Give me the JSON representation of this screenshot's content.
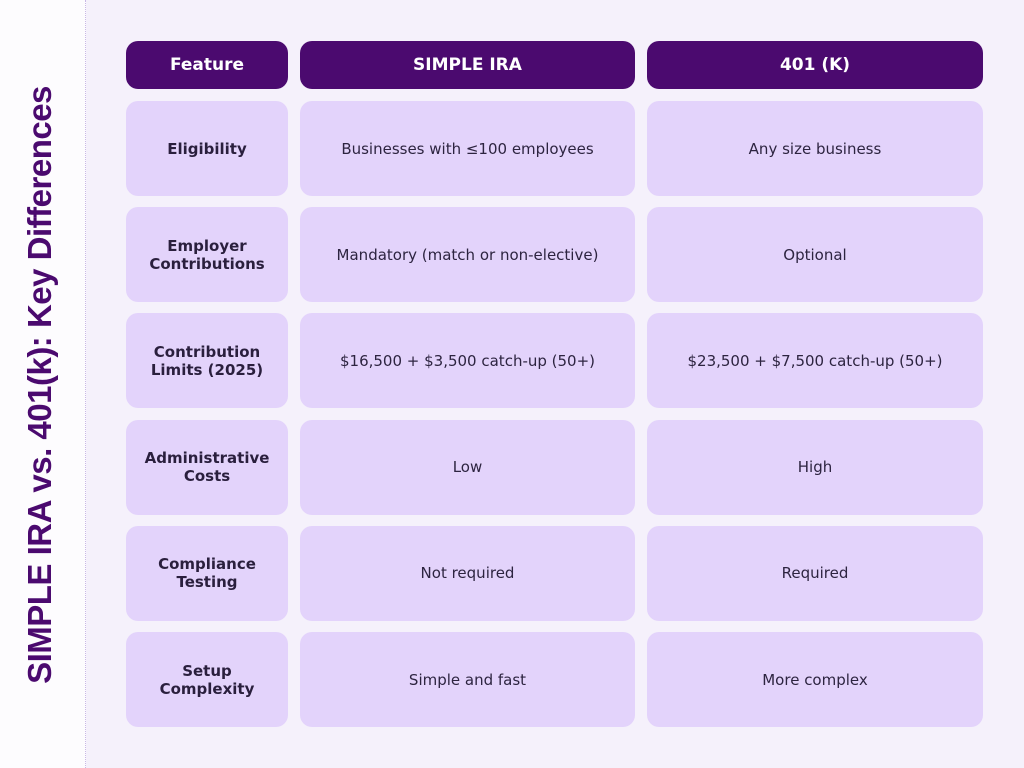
{
  "title": "SIMPLE IRA vs. 401(k): Key Differences",
  "table": {
    "header": [
      "Feature",
      "SIMPLE IRA",
      "401 (K)"
    ],
    "rows": [
      [
        "Eligibility",
        "Businesses with ≤100 employees",
        "Any size business"
      ],
      [
        "Employer Contributions",
        "Mandatory (match or non-elective)",
        "Optional"
      ],
      [
        "Contribution Limits (2025)",
        "$16,500 + $3,500 catch-up (50+)",
        "$23,500 + $7,500 catch-up (50+)"
      ],
      [
        "Administrative Costs",
        "Low",
        "High"
      ],
      [
        "Compliance Testing",
        "Not required",
        "Required"
      ],
      [
        "Setup Complexity",
        "Simple and fast",
        "More complex"
      ]
    ]
  }
}
